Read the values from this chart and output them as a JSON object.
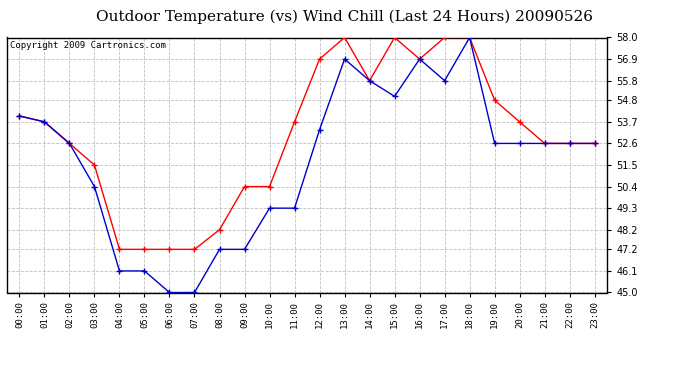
{
  "title": "Outdoor Temperature (vs) Wind Chill (Last 24 Hours) 20090526",
  "copyright": "Copyright 2009 Cartronics.com",
  "hours": [
    "00:00",
    "01:00",
    "02:00",
    "03:00",
    "04:00",
    "05:00",
    "06:00",
    "07:00",
    "08:00",
    "09:00",
    "10:00",
    "11:00",
    "12:00",
    "13:00",
    "14:00",
    "15:00",
    "16:00",
    "17:00",
    "18:00",
    "19:00",
    "20:00",
    "21:00",
    "22:00",
    "23:00"
  ],
  "temp_red": [
    54.0,
    53.7,
    52.6,
    51.5,
    47.2,
    47.2,
    47.2,
    47.2,
    48.2,
    50.4,
    50.4,
    53.7,
    56.9,
    58.0,
    55.8,
    58.0,
    56.9,
    58.0,
    58.0,
    54.8,
    53.7,
    52.6,
    52.6,
    52.6
  ],
  "temp_blue": [
    54.0,
    53.7,
    52.6,
    50.4,
    46.1,
    46.1,
    45.0,
    45.0,
    47.2,
    47.2,
    49.3,
    49.3,
    53.3,
    56.9,
    55.8,
    55.0,
    56.9,
    55.8,
    58.0,
    52.6,
    52.6,
    52.6,
    52.6,
    52.6
  ],
  "ylim": [
    45.0,
    58.0
  ],
  "yticks": [
    45.0,
    46.1,
    47.2,
    48.2,
    49.3,
    50.4,
    51.5,
    52.6,
    53.7,
    54.8,
    55.8,
    56.9,
    58.0
  ],
  "red_color": "#ff0000",
  "blue_color": "#0000cc",
  "grid_color": "#c0c0c0",
  "bg_color": "#ffffff",
  "title_fontsize": 11,
  "copyright_fontsize": 6.5
}
